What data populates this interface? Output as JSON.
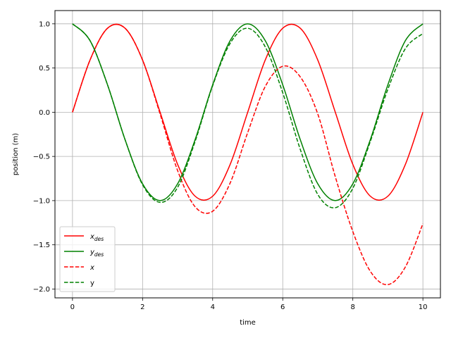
{
  "chart_data": {
    "type": "line",
    "title": "",
    "xlabel": "time",
    "ylabel": "position (m)",
    "xlim": [
      -0.5,
      10.5
    ],
    "ylim": [
      -2.1,
      1.15
    ],
    "xticks": [
      0,
      2,
      4,
      6,
      8,
      10
    ],
    "xtick_labels": [
      "0",
      "2",
      "4",
      "6",
      "8",
      "10"
    ],
    "yticks": [
      1.0,
      0.5,
      0.0,
      -0.5,
      -1.0,
      -1.5,
      -2.0
    ],
    "ytick_labels": [
      "1.0",
      "0.5",
      "0.0",
      "−0.5",
      "−1.0",
      "−1.5",
      "−2.0"
    ],
    "grid": true,
    "legend_position": "lower-left",
    "x": [
      0.0,
      0.5,
      1.0,
      1.5,
      2.0,
      2.5,
      3.0,
      3.5,
      4.0,
      4.5,
      5.0,
      5.5,
      6.0,
      6.5,
      7.0,
      7.5,
      8.0,
      8.5,
      9.0,
      9.5,
      10.0
    ],
    "series": [
      {
        "name": "x_des",
        "legend_main": "x",
        "legend_sub": "des",
        "color": "#ff0000",
        "style": "solid",
        "values": [
          0.0,
          0.59,
          0.95,
          0.95,
          0.59,
          0.0,
          -0.59,
          -0.95,
          -0.95,
          -0.59,
          0.0,
          0.59,
          0.95,
          0.95,
          0.59,
          0.0,
          -0.59,
          -0.95,
          -0.95,
          -0.59,
          0.0
        ]
      },
      {
        "name": "y_des",
        "legend_main": "y",
        "legend_sub": "des",
        "color": "#008000",
        "style": "solid",
        "values": [
          1.0,
          0.81,
          0.31,
          -0.31,
          -0.81,
          -1.0,
          -0.81,
          -0.31,
          0.31,
          0.81,
          1.0,
          0.81,
          0.31,
          -0.31,
          -0.81,
          -1.0,
          -0.81,
          -0.31,
          0.31,
          0.81,
          1.0
        ]
      },
      {
        "name": "x",
        "legend_main": "x",
        "legend_sub": "",
        "color": "#ff0000",
        "style": "dashed",
        "values": [
          0.0,
          0.59,
          0.95,
          0.95,
          0.59,
          -0.02,
          -0.66,
          -1.07,
          -1.12,
          -0.8,
          -0.23,
          0.29,
          0.52,
          0.4,
          -0.02,
          -0.73,
          -1.35,
          -1.8,
          -1.95,
          -1.75,
          -1.26
        ]
      },
      {
        "name": "y",
        "legend_main": "y",
        "legend_sub": "",
        "color": "#008000",
        "style": "dashed",
        "values": [
          1.0,
          0.81,
          0.31,
          -0.31,
          -0.82,
          -1.02,
          -0.85,
          -0.33,
          0.3,
          0.78,
          0.95,
          0.74,
          0.22,
          -0.42,
          -0.93,
          -1.08,
          -0.86,
          -0.33,
          0.26,
          0.72,
          0.89
        ]
      }
    ]
  }
}
